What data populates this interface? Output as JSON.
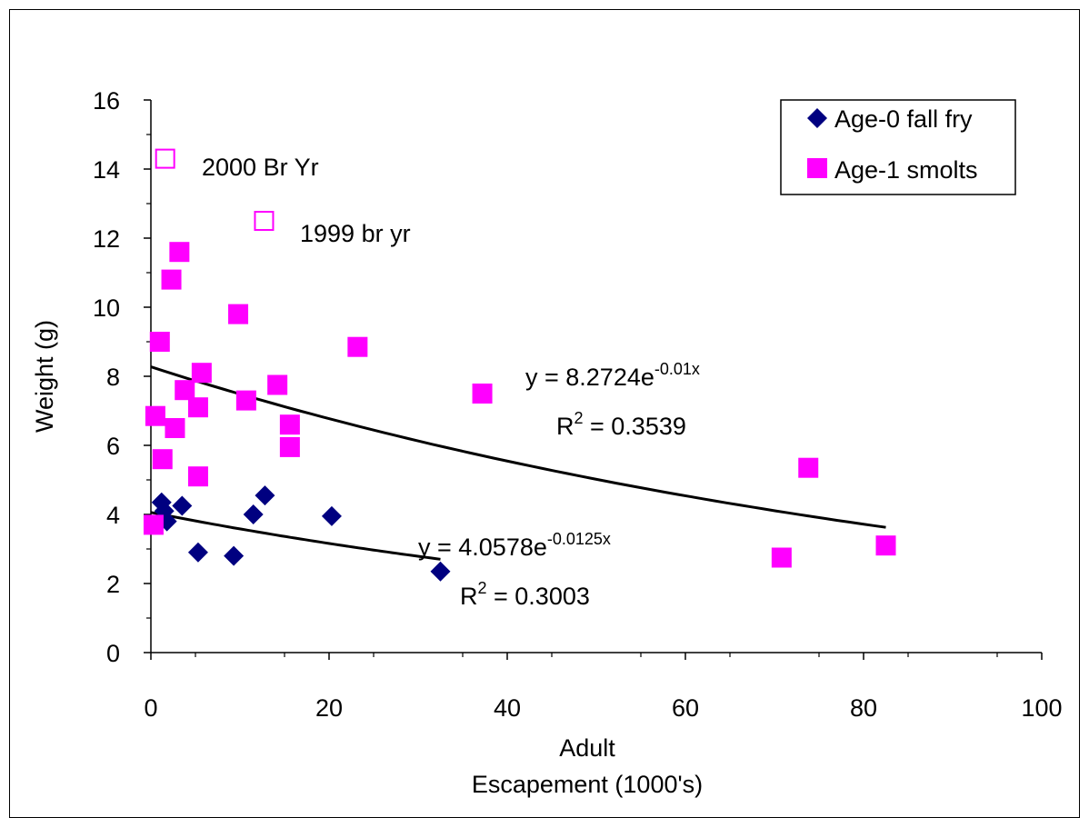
{
  "chart_data": {
    "type": "scatter",
    "title": "",
    "xlabel_line1": "Adult",
    "xlabel_line2": "Escapement (1000's)",
    "ylabel": "Weight (g)",
    "xlim": [
      0,
      100
    ],
    "ylim": [
      0,
      16
    ],
    "x_ticks": [
      "0",
      "20",
      "40",
      "60",
      "80",
      "100"
    ],
    "y_ticks": [
      "0",
      "2",
      "4",
      "6",
      "8",
      "10",
      "12",
      "14",
      "16"
    ],
    "grid": false,
    "legend_position": "top-right",
    "series": [
      {
        "name": "Age-0 fall fry",
        "marker": "diamond",
        "color": "#000080",
        "points": [
          [
            1.2,
            4.35
          ],
          [
            1.5,
            4.1
          ],
          [
            1.8,
            3.8
          ],
          [
            3.5,
            4.25
          ],
          [
            5.3,
            2.9
          ],
          [
            9.3,
            2.8
          ],
          [
            11.5,
            4.0
          ],
          [
            12.8,
            4.55
          ],
          [
            20.3,
            3.95
          ],
          [
            32.5,
            2.35
          ]
        ]
      },
      {
        "name": "Age-1 smolts",
        "marker": "square",
        "color": "#ff00ff",
        "points": [
          [
            0.3,
            3.7
          ],
          [
            0.5,
            6.85
          ],
          [
            1.0,
            9.0
          ],
          [
            1.3,
            5.6
          ],
          [
            2.3,
            10.8
          ],
          [
            2.7,
            6.5
          ],
          [
            3.2,
            11.6
          ],
          [
            3.8,
            7.6
          ],
          [
            5.3,
            7.1
          ],
          [
            5.3,
            5.1
          ],
          [
            5.7,
            8.1
          ],
          [
            9.8,
            9.8
          ],
          [
            10.7,
            7.3
          ],
          [
            14.2,
            7.75
          ],
          [
            15.6,
            6.6
          ],
          [
            15.6,
            5.95
          ],
          [
            23.2,
            8.85
          ],
          [
            37.2,
            7.5
          ],
          [
            70.8,
            2.75
          ],
          [
            73.8,
            5.35
          ],
          [
            82.5,
            3.1
          ]
        ]
      },
      {
        "name": "",
        "marker": "hollow-square",
        "color": "#ff00ff",
        "points": [
          [
            1.6,
            14.3
          ],
          [
            12.7,
            12.5
          ]
        ]
      }
    ],
    "trendlines": [
      {
        "series": "Age-0 fall fry",
        "a": 4.0578,
        "b": -0.0125,
        "x_range": [
          0,
          32.5
        ],
        "color": "#000000"
      },
      {
        "series": "Age-1 smolts",
        "a": 8.2724,
        "b": -0.01,
        "x_range": [
          0,
          82.5
        ],
        "color": "#000000"
      }
    ],
    "annotations": {
      "br2000": "2000 Br Yr",
      "br1999": "1999 br yr",
      "smolt_eq_base": "y = 8.2724e",
      "smolt_eq_exp": "-0.01x",
      "smolt_r2_a": "R",
      "smolt_r2_sup": "2",
      "smolt_r2_b": " = 0.3539",
      "fry_eq_base": "y = 4.0578e",
      "fry_eq_exp": "-0.0125x",
      "fry_r2_a": "R",
      "fry_r2_sup": "2",
      "fry_r2_b": " = 0.3003"
    },
    "legend": [
      "Age-0 fall fry",
      "Age-1 smolts"
    ]
  }
}
